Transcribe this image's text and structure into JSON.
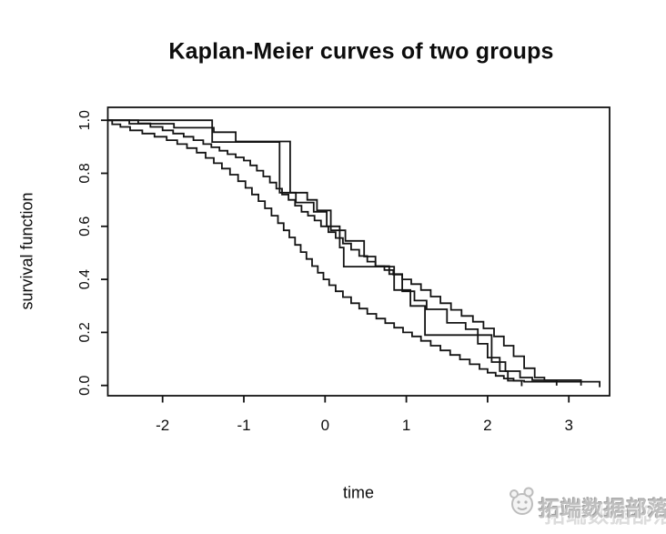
{
  "watermark": {
    "text": "拓端数据部落",
    "logo": "mascot-face-logo"
  },
  "chart_data": {
    "type": "line",
    "subtype": "step-survival",
    "title": "Kaplan-Meier curves of two groups",
    "xlabel": "time",
    "ylabel": "survival function",
    "x_ticks": [
      -2,
      -1,
      0,
      1,
      2,
      3
    ],
    "y_ticks": [
      0.0,
      0.2,
      0.4,
      0.6,
      0.8,
      1.0
    ],
    "xlim": [
      -2.67,
      3.5
    ],
    "ylim": [
      -0.04,
      1.05
    ],
    "grid": false,
    "legend": "none",
    "line_color": "#131313",
    "background": "#ffffff",
    "series": [
      {
        "name": "group1-km-dense",
        "start": [
          -2.67,
          1.0
        ],
        "tail_end": 3.38,
        "points": [
          [
            -2.62,
            0.985
          ],
          [
            -2.52,
            0.975
          ],
          [
            -2.4,
            0.962
          ],
          [
            -2.25,
            0.95
          ],
          [
            -2.1,
            0.938
          ],
          [
            -1.95,
            0.925
          ],
          [
            -1.82,
            0.91
          ],
          [
            -1.7,
            0.895
          ],
          [
            -1.58,
            0.878
          ],
          [
            -1.47,
            0.858
          ],
          [
            -1.37,
            0.838
          ],
          [
            -1.27,
            0.818
          ],
          [
            -1.17,
            0.795
          ],
          [
            -1.07,
            0.77
          ],
          [
            -0.98,
            0.745
          ],
          [
            -0.9,
            0.72
          ],
          [
            -0.82,
            0.695
          ],
          [
            -0.74,
            0.668
          ],
          [
            -0.66,
            0.64
          ],
          [
            -0.58,
            0.612
          ],
          [
            -0.51,
            0.585
          ],
          [
            -0.44,
            0.558
          ],
          [
            -0.37,
            0.53
          ],
          [
            -0.3,
            0.503
          ],
          [
            -0.23,
            0.477
          ],
          [
            -0.16,
            0.45
          ],
          [
            -0.09,
            0.425
          ],
          [
            -0.02,
            0.4
          ],
          [
            0.05,
            0.378
          ],
          [
            0.13,
            0.355
          ],
          [
            0.22,
            0.333
          ],
          [
            0.32,
            0.31
          ],
          [
            0.42,
            0.29
          ],
          [
            0.52,
            0.27
          ],
          [
            0.63,
            0.252
          ],
          [
            0.74,
            0.235
          ],
          [
            0.85,
            0.218
          ],
          [
            0.96,
            0.2
          ],
          [
            1.07,
            0.185
          ],
          [
            1.18,
            0.168
          ],
          [
            1.3,
            0.15
          ],
          [
            1.42,
            0.132
          ],
          [
            1.54,
            0.115
          ],
          [
            1.66,
            0.098
          ],
          [
            1.78,
            0.08
          ],
          [
            1.9,
            0.062
          ],
          [
            2.0,
            0.048
          ],
          [
            2.1,
            0.036
          ],
          [
            2.2,
            0.026
          ],
          [
            2.32,
            0.018
          ],
          [
            2.45,
            0.014
          ]
        ]
      },
      {
        "name": "group2-km-dense",
        "start": [
          -2.67,
          1.0
        ],
        "tail_end": 3.15,
        "points": [
          [
            -2.3,
            0.988
          ],
          [
            -2.15,
            0.975
          ],
          [
            -2.0,
            0.962
          ],
          [
            -1.87,
            0.95
          ],
          [
            -1.74,
            0.938
          ],
          [
            -1.62,
            0.925
          ],
          [
            -1.5,
            0.91
          ],
          [
            -1.4,
            0.898
          ],
          [
            -1.3,
            0.885
          ],
          [
            -1.2,
            0.872
          ],
          [
            -1.1,
            0.86
          ],
          [
            -1.0,
            0.848
          ],
          [
            -0.92,
            0.83
          ],
          [
            -0.84,
            0.81
          ],
          [
            -0.76,
            0.788
          ],
          [
            -0.68,
            0.765
          ],
          [
            -0.6,
            0.742
          ],
          [
            -0.53,
            0.72
          ],
          [
            -0.45,
            0.7
          ],
          [
            -0.37,
            0.678
          ],
          [
            -0.29,
            0.655
          ],
          [
            -0.21,
            0.64
          ],
          [
            -0.13,
            0.622
          ],
          [
            -0.05,
            0.6
          ],
          [
            0.04,
            0.578
          ],
          [
            0.13,
            0.556
          ],
          [
            0.22,
            0.535
          ],
          [
            0.32,
            0.512
          ],
          [
            0.42,
            0.488
          ],
          [
            0.52,
            0.467
          ],
          [
            0.62,
            0.45
          ],
          [
            0.73,
            0.435
          ],
          [
            0.84,
            0.418
          ],
          [
            0.95,
            0.4
          ],
          [
            1.06,
            0.382
          ],
          [
            1.18,
            0.36
          ],
          [
            1.3,
            0.335
          ],
          [
            1.42,
            0.31
          ],
          [
            1.55,
            0.285
          ],
          [
            1.68,
            0.262
          ],
          [
            1.82,
            0.24
          ],
          [
            1.95,
            0.215
          ],
          [
            2.08,
            0.185
          ],
          [
            2.2,
            0.15
          ],
          [
            2.32,
            0.11
          ],
          [
            2.45,
            0.065
          ],
          [
            2.58,
            0.03
          ],
          [
            2.7,
            0.02
          ]
        ]
      },
      {
        "name": "group1-sparse",
        "start": [
          -2.67,
          1.0
        ],
        "tail_end": 2.85,
        "points": [
          [
            -1.39,
            0.918
          ],
          [
            -0.56,
            0.727
          ],
          [
            -0.36,
            0.69
          ],
          [
            -0.14,
            0.655
          ],
          [
            0.02,
            0.6
          ],
          [
            0.18,
            0.52
          ],
          [
            0.23,
            0.448
          ],
          [
            0.85,
            0.36
          ],
          [
            1.05,
            0.3
          ],
          [
            1.23,
            0.19
          ],
          [
            2.05,
            0.088
          ],
          [
            2.22,
            0.054
          ],
          [
            2.4,
            0.03
          ],
          [
            2.55,
            0.02
          ]
        ]
      },
      {
        "name": "group2-sparse",
        "start": [
          -2.67,
          1.0
        ],
        "tail_end": 2.42,
        "points": [
          [
            -2.41,
            0.987
          ],
          [
            -1.86,
            0.972
          ],
          [
            -1.37,
            0.955
          ],
          [
            -1.1,
            0.92
          ],
          [
            -0.43,
            0.727
          ],
          [
            -0.22,
            0.7
          ],
          [
            -0.1,
            0.66
          ],
          [
            0.07,
            0.585
          ],
          [
            0.25,
            0.545
          ],
          [
            0.48,
            0.486
          ],
          [
            0.62,
            0.45
          ],
          [
            0.79,
            0.42
          ],
          [
            0.95,
            0.355
          ],
          [
            1.1,
            0.32
          ],
          [
            1.25,
            0.287
          ],
          [
            1.5,
            0.236
          ],
          [
            1.73,
            0.212
          ],
          [
            1.88,
            0.157
          ],
          [
            2.0,
            0.105
          ],
          [
            2.15,
            0.054
          ],
          [
            2.25,
            0.018
          ]
        ]
      }
    ]
  }
}
